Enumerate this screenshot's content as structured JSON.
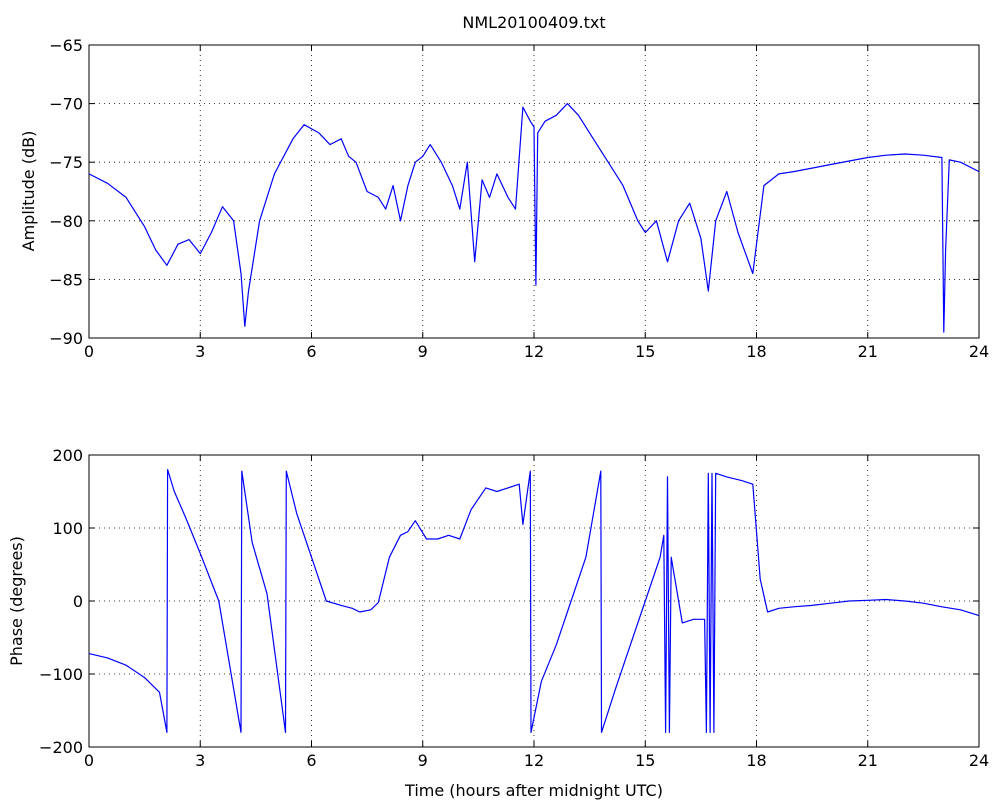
{
  "chart_data": [
    {
      "type": "line",
      "title": "NML20100409.txt",
      "xlabel": "",
      "ylabel": "Amplitude (dB)",
      "xlim": [
        0,
        24
      ],
      "ylim": [
        -90,
        -65
      ],
      "xticks": [
        "0",
        "3",
        "6",
        "9",
        "12",
        "15",
        "18",
        "21",
        "24"
      ],
      "yticks": [
        "−90",
        "−85",
        "−80",
        "−75",
        "−70",
        "−65"
      ],
      "grid": true,
      "color": "#0000FF",
      "x": [
        0,
        0.5,
        1.0,
        1.5,
        1.8,
        2.1,
        2.4,
        2.7,
        3.0,
        3.3,
        3.6,
        3.9,
        4.1,
        4.2,
        4.3,
        4.6,
        5.0,
        5.5,
        5.8,
        6.2,
        6.5,
        6.8,
        7.0,
        7.2,
        7.5,
        7.8,
        8.0,
        8.2,
        8.4,
        8.6,
        8.8,
        9.0,
        9.2,
        9.5,
        9.8,
        10.0,
        10.2,
        10.4,
        10.6,
        10.8,
        11.0,
        11.3,
        11.5,
        11.7,
        11.9,
        12.0,
        12.05,
        12.1,
        12.3,
        12.6,
        12.9,
        13.2,
        13.6,
        14.0,
        14.4,
        14.8,
        15.0,
        15.3,
        15.6,
        15.9,
        16.2,
        16.5,
        16.7,
        16.9,
        17.2,
        17.5,
        17.9,
        18.2,
        18.6,
        19.0,
        19.5,
        20.0,
        20.5,
        21.0,
        21.5,
        22.0,
        22.5,
        23.0,
        23.05,
        23.1,
        23.2,
        23.5,
        24.0
      ],
      "y": [
        -76.0,
        -76.8,
        -78.0,
        -80.5,
        -82.5,
        -83.8,
        -82.0,
        -81.6,
        -82.8,
        -81.0,
        -78.8,
        -80.0,
        -84.5,
        -89.0,
        -86.0,
        -80.0,
        -76.0,
        -73.0,
        -71.8,
        -72.5,
        -73.5,
        -73.0,
        -74.5,
        -75.0,
        -77.5,
        -78.0,
        -79.0,
        -77.0,
        -80.0,
        -77.0,
        -75.0,
        -74.5,
        -73.5,
        -75.0,
        -77.0,
        -79.0,
        -75.0,
        -83.5,
        -76.5,
        -78.0,
        -76.0,
        -78.0,
        -79.0,
        -70.3,
        -71.5,
        -72.0,
        -85.5,
        -72.5,
        -71.5,
        -71.0,
        -70.0,
        -71.0,
        -73.0,
        -75.0,
        -77.0,
        -80.0,
        -81.0,
        -80.0,
        -83.5,
        -80.0,
        -78.5,
        -81.5,
        -86.0,
        -80.0,
        -77.5,
        -81.0,
        -84.5,
        -77.0,
        -76.0,
        -75.8,
        -75.5,
        -75.2,
        -74.9,
        -74.6,
        -74.4,
        -74.3,
        -74.4,
        -74.6,
        -89.5,
        -82.5,
        -74.8,
        -75.0,
        -75.8
      ]
    },
    {
      "type": "line",
      "title": "",
      "xlabel": "Time (hours after midnight UTC)",
      "ylabel": "Phase (degrees)",
      "xlim": [
        0,
        24
      ],
      "ylim": [
        -200,
        200
      ],
      "xticks": [
        "0",
        "3",
        "6",
        "9",
        "12",
        "15",
        "18",
        "21",
        "24"
      ],
      "yticks": [
        "−200",
        "−100",
        "0",
        "100",
        "200"
      ],
      "grid": true,
      "color": "#0000FF",
      "x": [
        0,
        0.5,
        1.0,
        1.5,
        1.9,
        2.1,
        2.12,
        2.3,
        2.6,
        3.0,
        3.5,
        4.1,
        4.12,
        4.4,
        4.8,
        5.3,
        5.32,
        5.6,
        6.0,
        6.4,
        6.8,
        7.1,
        7.3,
        7.6,
        7.8,
        8.1,
        8.4,
        8.6,
        8.8,
        9.1,
        9.4,
        9.7,
        10.0,
        10.3,
        10.5,
        10.7,
        11.0,
        11.3,
        11.6,
        11.7,
        11.9,
        11.92,
        12.2,
        12.6,
        13.0,
        13.4,
        13.8,
        13.82,
        14.2,
        14.6,
        15.0,
        15.4,
        15.5,
        15.55,
        15.6,
        15.65,
        15.7,
        16.0,
        16.3,
        16.6,
        16.65,
        16.7,
        16.75,
        16.8,
        16.85,
        16.9,
        17.2,
        17.6,
        17.9,
        18.1,
        18.3,
        18.6,
        19.0,
        19.5,
        20.0,
        20.5,
        21.0,
        21.5,
        22.0,
        22.5,
        23.0,
        23.5,
        24.0
      ],
      "y": [
        -72,
        -78,
        -88,
        -105,
        -125,
        -180,
        180,
        150,
        115,
        65,
        0,
        -180,
        178,
        80,
        10,
        -180,
        178,
        120,
        60,
        0,
        -6,
        -10,
        -15,
        -12,
        -2,
        60,
        90,
        95,
        110,
        85,
        85,
        90,
        85,
        125,
        140,
        155,
        150,
        155,
        160,
        105,
        178,
        -180,
        -110,
        -60,
        0,
        60,
        178,
        -180,
        -120,
        -60,
        0,
        60,
        90,
        -180,
        170,
        -180,
        60,
        -30,
        -25,
        -25,
        -180,
        175,
        -180,
        175,
        -180,
        175,
        170,
        165,
        160,
        30,
        -15,
        -10,
        -8,
        -6,
        -3,
        0,
        1,
        2,
        0,
        -3,
        -8,
        -12,
        -20
      ]
    }
  ]
}
